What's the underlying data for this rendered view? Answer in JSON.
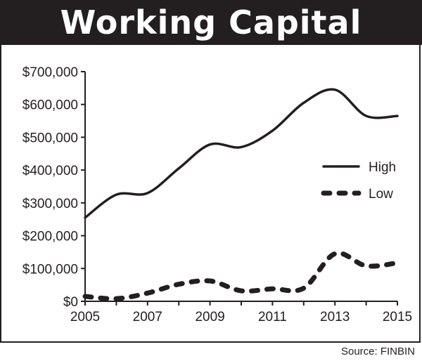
{
  "title": "Working Capital",
  "source": "Source: FINBIN",
  "colors": {
    "ink": "#231f20",
    "background": "#ffffff"
  },
  "chart_data": {
    "type": "line",
    "title": "Working Capital",
    "xlabel": "",
    "ylabel": "",
    "x": [
      2005,
      2006,
      2007,
      2008,
      2009,
      2010,
      2011,
      2012,
      2013,
      2014,
      2015
    ],
    "xticks": [
      2005,
      2007,
      2009,
      2011,
      2013,
      2015
    ],
    "xtick_labels": [
      "2005",
      "2007",
      "2009",
      "2011",
      "2013",
      "2015"
    ],
    "xlim": [
      2005,
      2015
    ],
    "ylim": [
      0,
      700000
    ],
    "yticks": [
      0,
      100000,
      200000,
      300000,
      400000,
      500000,
      600000,
      700000
    ],
    "ytick_labels": [
      "$0",
      "$100,000",
      "$200,000",
      "$300,000",
      "$400,000",
      "$500,000",
      "$600,000",
      "$700,000"
    ],
    "grid": false,
    "legend_position": "right",
    "series": [
      {
        "name": "High",
        "style": "solid",
        "values": [
          255000,
          325000,
          330000,
          405000,
          478000,
          470000,
          520000,
          605000,
          645000,
          565000,
          565000
        ]
      },
      {
        "name": "Low",
        "style": "dashed",
        "values": [
          15000,
          8000,
          25000,
          52000,
          62000,
          32000,
          38000,
          40000,
          145000,
          108000,
          117000
        ]
      }
    ]
  }
}
